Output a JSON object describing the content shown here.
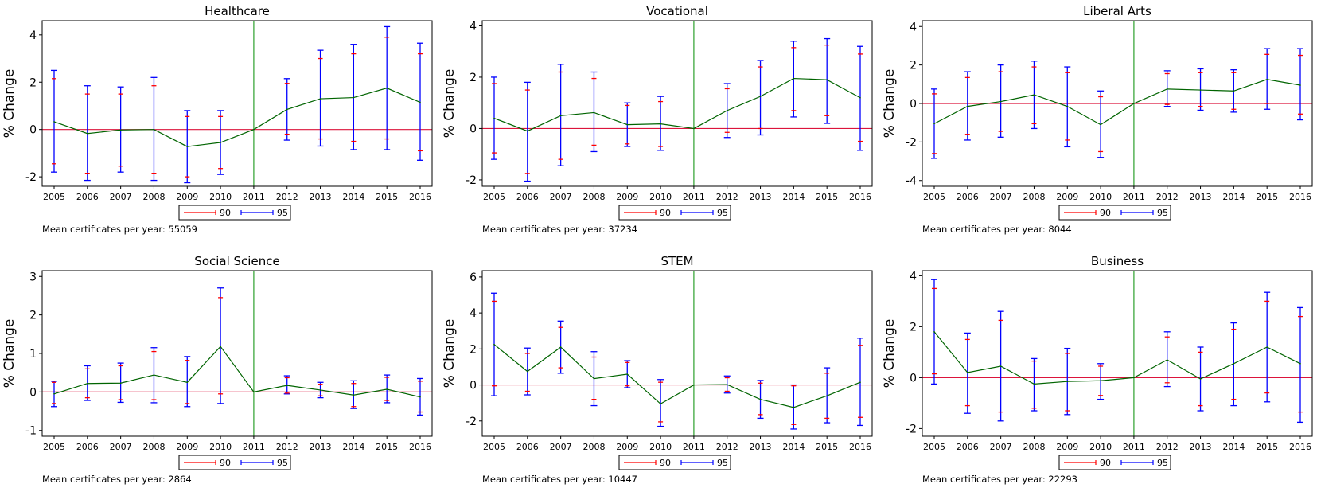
{
  "legend": {
    "ci90": "90",
    "ci95": "95"
  },
  "colors": {
    "line": "#006400",
    "zero": "#dc143c",
    "ci90": "#ff0000",
    "ci95": "#0000ff",
    "divider": "#2ca02c"
  },
  "chart_data": [
    {
      "type": "line",
      "title": "Healthcare",
      "ylabel": "% Change",
      "x": [
        "2005",
        "2006",
        "2007",
        "2008",
        "2009",
        "2010",
        "2011",
        "2012",
        "2013",
        "2014",
        "2015",
        "2016"
      ],
      "ylim": [
        -2.4,
        4.6
      ],
      "yticks": [
        -2,
        0,
        2,
        4
      ],
      "vline": "2011",
      "values": [
        0.33,
        -0.17,
        -0.02,
        0.0,
        -0.72,
        -0.55,
        0.0,
        0.85,
        1.3,
        1.35,
        1.75,
        1.15
      ],
      "ci90": [
        [
          -1.45,
          2.15
        ],
        [
          -1.85,
          1.5
        ],
        [
          -1.55,
          1.5
        ],
        [
          -1.85,
          1.85
        ],
        [
          -2.0,
          0.55
        ],
        [
          -1.65,
          0.55
        ],
        [
          0.0,
          0.0
        ],
        [
          -0.2,
          1.95
        ],
        [
          -0.4,
          3.0
        ],
        [
          -0.5,
          3.2
        ],
        [
          -0.4,
          3.9
        ],
        [
          -0.9,
          3.2
        ]
      ],
      "ci95": [
        [
          -1.8,
          2.5
        ],
        [
          -2.15,
          1.85
        ],
        [
          -1.8,
          1.8
        ],
        [
          -2.15,
          2.2
        ],
        [
          -2.25,
          0.8
        ],
        [
          -1.9,
          0.8
        ],
        [
          0.0,
          0.0
        ],
        [
          -0.45,
          2.15
        ],
        [
          -0.7,
          3.35
        ],
        [
          -0.85,
          3.6
        ],
        [
          -0.85,
          4.35
        ],
        [
          -1.3,
          3.65
        ]
      ],
      "note": "Mean certificates per year: 55059"
    },
    {
      "type": "line",
      "title": "Vocational",
      "ylabel": "% Change",
      "x": [
        "2005",
        "2006",
        "2007",
        "2008",
        "2009",
        "2010",
        "2011",
        "2012",
        "2013",
        "2014",
        "2015",
        "2016"
      ],
      "ylim": [
        -2.25,
        4.2
      ],
      "yticks": [
        -2,
        0,
        2,
        4
      ],
      "vline": "2011",
      "values": [
        0.4,
        -0.1,
        0.5,
        0.62,
        0.15,
        0.18,
        0.0,
        0.7,
        1.25,
        1.95,
        1.9,
        1.2
      ],
      "ci90": [
        [
          -0.95,
          1.75
        ],
        [
          -1.75,
          1.5
        ],
        [
          -1.2,
          2.2
        ],
        [
          -0.65,
          1.95
        ],
        [
          -0.6,
          0.9
        ],
        [
          -0.7,
          1.05
        ],
        [
          0.0,
          0.0
        ],
        [
          -0.15,
          1.55
        ],
        [
          0.0,
          2.4
        ],
        [
          0.7,
          3.15
        ],
        [
          0.5,
          3.25
        ],
        [
          -0.5,
          2.9
        ]
      ],
      "ci95": [
        [
          -1.2,
          2.0
        ],
        [
          -2.05,
          1.8
        ],
        [
          -1.45,
          2.5
        ],
        [
          -0.9,
          2.2
        ],
        [
          -0.7,
          1.0
        ],
        [
          -0.85,
          1.25
        ],
        [
          0.0,
          0.0
        ],
        [
          -0.35,
          1.75
        ],
        [
          -0.25,
          2.65
        ],
        [
          0.45,
          3.4
        ],
        [
          0.2,
          3.5
        ],
        [
          -0.85,
          3.2
        ]
      ],
      "note": "Mean certificates per year: 37234"
    },
    {
      "type": "line",
      "title": "Liberal Arts",
      "ylabel": "% Change",
      "x": [
        "2005",
        "2006",
        "2007",
        "2008",
        "2009",
        "2010",
        "2011",
        "2012",
        "2013",
        "2014",
        "2015",
        "2016"
      ],
      "ylim": [
        -4.3,
        4.3
      ],
      "yticks": [
        -4,
        -2,
        0,
        2,
        4
      ],
      "vline": "2011",
      "values": [
        -1.05,
        -0.15,
        0.1,
        0.45,
        -0.15,
        -1.1,
        0.0,
        0.75,
        0.7,
        0.65,
        1.25,
        0.95
      ],
      "ci90": [
        [
          -2.6,
          0.5
        ],
        [
          -1.6,
          1.35
        ],
        [
          -1.45,
          1.65
        ],
        [
          -1.05,
          1.9
        ],
        [
          -1.9,
          1.6
        ],
        [
          -2.5,
          0.35
        ],
        [
          0.0,
          0.0
        ],
        [
          -0.05,
          1.55
        ],
        [
          -0.15,
          1.6
        ],
        [
          -0.3,
          1.6
        ],
        [
          0.0,
          2.55
        ],
        [
          -0.55,
          2.5
        ]
      ],
      "ci95": [
        [
          -2.85,
          0.75
        ],
        [
          -1.9,
          1.65
        ],
        [
          -1.75,
          2.0
        ],
        [
          -1.3,
          2.2
        ],
        [
          -2.25,
          1.9
        ],
        [
          -2.8,
          0.65
        ],
        [
          0.0,
          0.0
        ],
        [
          -0.15,
          1.7
        ],
        [
          -0.35,
          1.8
        ],
        [
          -0.45,
          1.75
        ],
        [
          -0.3,
          2.85
        ],
        [
          -0.85,
          2.85
        ]
      ],
      "note": "Mean certificates per year: 8044"
    },
    {
      "type": "line",
      "title": "Social Science",
      "ylabel": "% Change",
      "x": [
        "2005",
        "2006",
        "2007",
        "2008",
        "2009",
        "2010",
        "2011",
        "2012",
        "2013",
        "2014",
        "2015",
        "2016"
      ],
      "ylim": [
        -1.15,
        3.15
      ],
      "yticks": [
        -1,
        0,
        1,
        2,
        3
      ],
      "vline": "2011",
      "values": [
        -0.05,
        0.22,
        0.23,
        0.44,
        0.25,
        1.18,
        0.0,
        0.17,
        0.05,
        -0.08,
        0.07,
        -0.13
      ],
      "ci90": [
        [
          -0.3,
          0.25
        ],
        [
          -0.15,
          0.6
        ],
        [
          -0.2,
          0.68
        ],
        [
          -0.2,
          1.05
        ],
        [
          -0.3,
          0.82
        ],
        [
          -0.05,
          2.45
        ],
        [
          0.0,
          0.0
        ],
        [
          -0.03,
          0.37
        ],
        [
          -0.1,
          0.2
        ],
        [
          -0.38,
          0.22
        ],
        [
          -0.22,
          0.38
        ],
        [
          -0.52,
          0.28
        ]
      ],
      "ci95": [
        [
          -0.38,
          0.28
        ],
        [
          -0.22,
          0.68
        ],
        [
          -0.27,
          0.75
        ],
        [
          -0.28,
          1.15
        ],
        [
          -0.38,
          0.92
        ],
        [
          -0.3,
          2.7
        ],
        [
          0.0,
          0.0
        ],
        [
          -0.05,
          0.42
        ],
        [
          -0.15,
          0.25
        ],
        [
          -0.43,
          0.29
        ],
        [
          -0.28,
          0.44
        ],
        [
          -0.6,
          0.35
        ]
      ],
      "note": "Mean certificates per year: 2864"
    },
    {
      "type": "line",
      "title": "STEM",
      "ylabel": "% Change",
      "x": [
        "2005",
        "2006",
        "2007",
        "2008",
        "2009",
        "2010",
        "2011",
        "2012",
        "2013",
        "2014",
        "2015",
        "2016"
      ],
      "ylim": [
        -2.85,
        6.35
      ],
      "yticks": [
        -2,
        0,
        2,
        4,
        6
      ],
      "vline": "2011",
      "values": [
        2.25,
        0.75,
        2.1,
        0.35,
        0.6,
        -1.05,
        0.0,
        0.02,
        -0.8,
        -1.25,
        -0.6,
        0.15
      ],
      "ci90": [
        [
          -0.05,
          4.65
        ],
        [
          -0.35,
          1.75
        ],
        [
          0.95,
          3.2
        ],
        [
          -0.8,
          1.55
        ],
        [
          -0.05,
          1.25
        ],
        [
          -2.05,
          0.15
        ],
        [
          0.0,
          0.0
        ],
        [
          -0.35,
          0.4
        ],
        [
          -1.65,
          0.1
        ],
        [
          -2.2,
          -0.05
        ],
        [
          -1.85,
          0.65
        ],
        [
          -1.8,
          2.2
        ]
      ],
      "ci95": [
        [
          -0.6,
          5.1
        ],
        [
          -0.55,
          2.05
        ],
        [
          0.65,
          3.55
        ],
        [
          -1.15,
          1.85
        ],
        [
          -0.15,
          1.35
        ],
        [
          -2.3,
          0.3
        ],
        [
          0.0,
          0.0
        ],
        [
          -0.45,
          0.5
        ],
        [
          -1.85,
          0.25
        ],
        [
          -2.45,
          0.0
        ],
        [
          -2.1,
          0.95
        ],
        [
          -2.25,
          2.6
        ]
      ],
      "note": "Mean certificates per year: 10447"
    },
    {
      "type": "line",
      "title": "Business",
      "ylabel": "% Change",
      "x": [
        "2005",
        "2006",
        "2007",
        "2008",
        "2009",
        "2010",
        "2011",
        "2012",
        "2013",
        "2014",
        "2015",
        "2016"
      ],
      "ylim": [
        -2.3,
        4.2
      ],
      "yticks": [
        -2,
        0,
        2,
        4
      ],
      "vline": "2011",
      "values": [
        1.8,
        0.2,
        0.45,
        -0.25,
        -0.15,
        -0.12,
        0.0,
        0.7,
        -0.05,
        0.55,
        1.2,
        0.55
      ],
      "ci90": [
        [
          0.15,
          3.5
        ],
        [
          -1.1,
          1.5
        ],
        [
          -1.35,
          2.25
        ],
        [
          -1.2,
          0.65
        ],
        [
          -1.3,
          0.95
        ],
        [
          -0.7,
          0.45
        ],
        [
          0.0,
          0.0
        ],
        [
          -0.2,
          1.6
        ],
        [
          -1.1,
          1.0
        ],
        [
          -0.85,
          1.9
        ],
        [
          -0.6,
          3.0
        ],
        [
          -1.35,
          2.4
        ]
      ],
      "ci95": [
        [
          -0.25,
          3.85
        ],
        [
          -1.4,
          1.75
        ],
        [
          -1.7,
          2.6
        ],
        [
          -1.3,
          0.75
        ],
        [
          -1.45,
          1.15
        ],
        [
          -0.85,
          0.55
        ],
        [
          0.0,
          0.0
        ],
        [
          -0.35,
          1.8
        ],
        [
          -1.3,
          1.2
        ],
        [
          -1.1,
          2.15
        ],
        [
          -0.95,
          3.35
        ],
        [
          -1.75,
          2.75
        ]
      ],
      "note": "Mean certificates per year: 22293"
    }
  ]
}
